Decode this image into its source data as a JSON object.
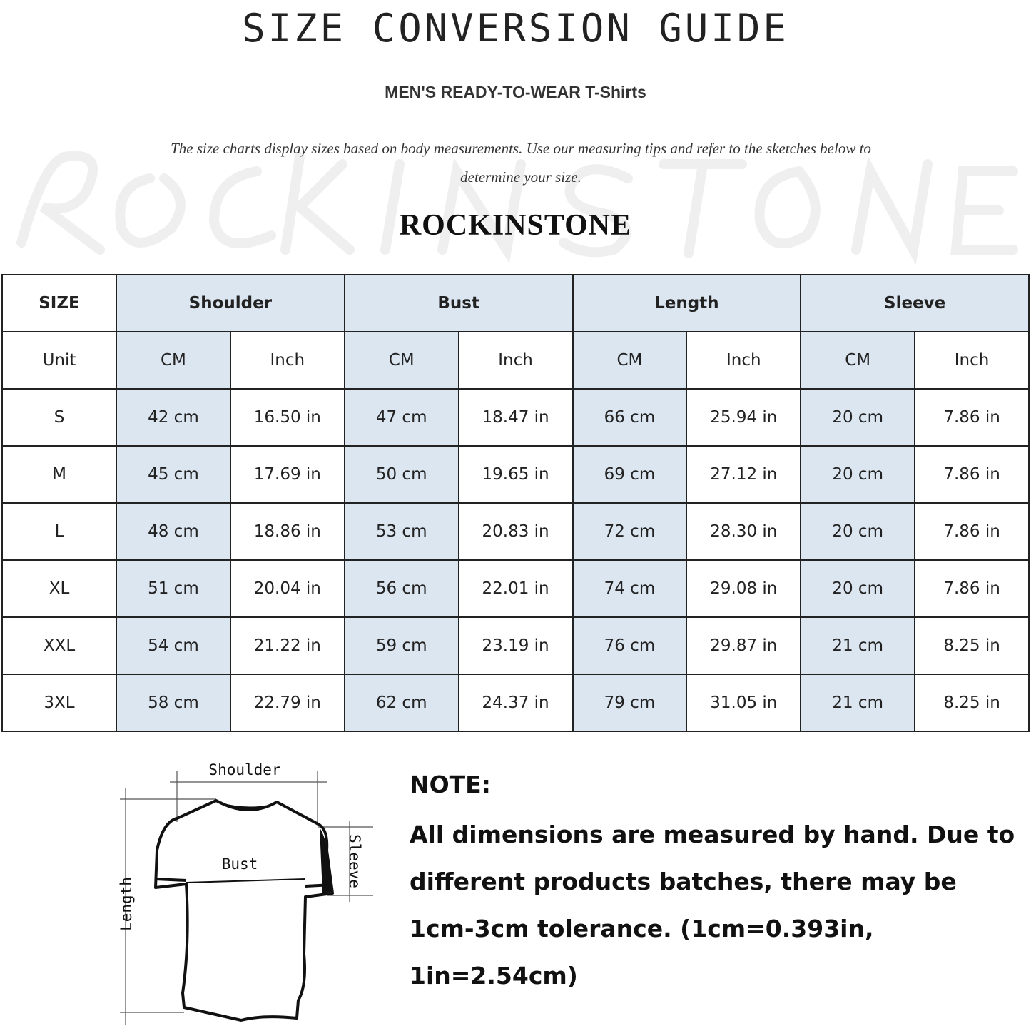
{
  "title": "SIZE CONVERSION GUIDE",
  "subtitle": "MEN'S READY-TO-WEAR T-Shirts",
  "intro": "The size charts display sizes based on body measurements. Use our measuring tips and refer to the sketches below to determine your size.",
  "watermark": "ROCKINSTONE",
  "brand": "ROCKINSTONE",
  "colors": {
    "header_fill": "#dce6f1",
    "border": "#222222"
  },
  "table": {
    "group_headers": [
      "SIZE",
      "Shoulder",
      "Bust",
      "Length",
      "Sleeve"
    ],
    "unit_row": [
      "Unit",
      "CM",
      "Inch",
      "CM",
      "Inch",
      "CM",
      "Inch",
      "CM",
      "Inch"
    ],
    "rows": [
      [
        "S",
        "42 cm",
        "16.50 in",
        "47 cm",
        "18.47 in",
        "66 cm",
        "25.94 in",
        "20 cm",
        "7.86 in"
      ],
      [
        "M",
        "45 cm",
        "17.69 in",
        "50 cm",
        "19.65 in",
        "69 cm",
        "27.12 in",
        "20 cm",
        "7.86 in"
      ],
      [
        "L",
        "48 cm",
        "18.86 in",
        "53 cm",
        "20.83 in",
        "72 cm",
        "28.30 in",
        "20 cm",
        "7.86 in"
      ],
      [
        "XL",
        "51 cm",
        "20.04 in",
        "56 cm",
        "22.01 in",
        "74 cm",
        "29.08 in",
        "20 cm",
        "7.86 in"
      ],
      [
        "XXL",
        "54 cm",
        "21.22 in",
        "59 cm",
        "23.19 in",
        "76 cm",
        "29.87 in",
        "21 cm",
        "8.25 in"
      ],
      [
        "3XL",
        "58 cm",
        "22.79 in",
        "62 cm",
        "24.37 in",
        "79 cm",
        "31.05 in",
        "21 cm",
        "8.25 in"
      ]
    ]
  },
  "sketch": {
    "shoulder": "Shoulder",
    "bust": "Bust",
    "length": "Length",
    "sleeve": "Sleeve"
  },
  "note": {
    "heading": "NOTE:",
    "body": "All dimensions are measured by hand. Due to different products batches, there may be 1cm-3cm tolerance. (1cm=0.393in, 1in=2.54cm)"
  }
}
